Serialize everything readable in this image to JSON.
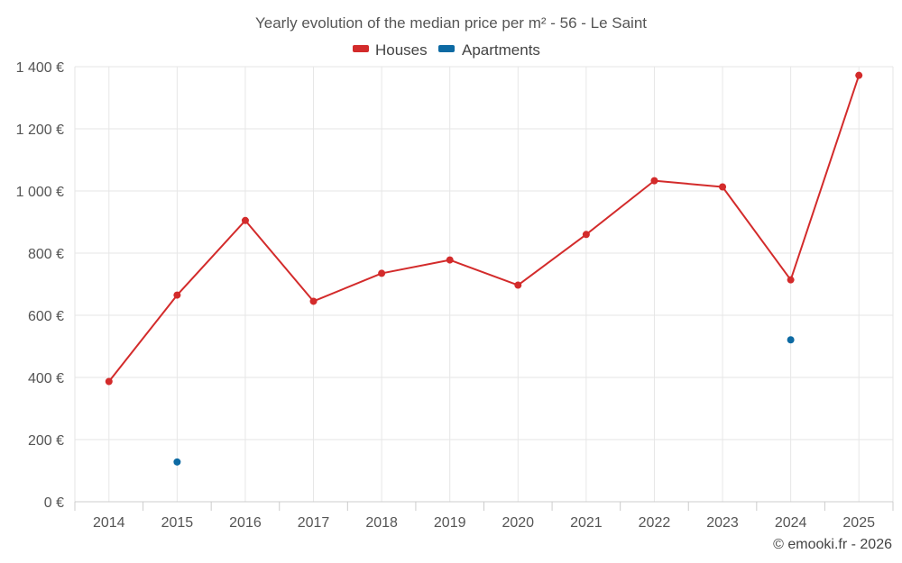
{
  "chart_data": {
    "type": "line",
    "title": "Yearly evolution of the median price per m² - 56 - Le Saint",
    "categories": [
      "2014",
      "2015",
      "2016",
      "2017",
      "2018",
      "2019",
      "2020",
      "2021",
      "2022",
      "2023",
      "2024",
      "2025"
    ],
    "series": [
      {
        "name": "Houses",
        "color": "#d32b2b",
        "values": [
          387,
          665,
          905,
          645,
          735,
          778,
          697,
          860,
          1033,
          1013,
          714,
          1372
        ]
      },
      {
        "name": "Apartments",
        "color": "#0d6aa3",
        "values": [
          null,
          128,
          null,
          null,
          null,
          null,
          null,
          null,
          null,
          null,
          521,
          null
        ]
      }
    ],
    "ylim": [
      0,
      1400
    ],
    "yticks": [
      0,
      200,
      400,
      600,
      800,
      1000,
      1200,
      1400
    ],
    "ytick_labels": [
      "0 €",
      "200 €",
      "400 €",
      "600 €",
      "800 €",
      "1 000 €",
      "1 200 €",
      "1 400 €"
    ],
    "xlabel": "",
    "ylabel": "",
    "legend": "top-center",
    "grid": true
  },
  "credit": "© emooki.fr - 2026"
}
